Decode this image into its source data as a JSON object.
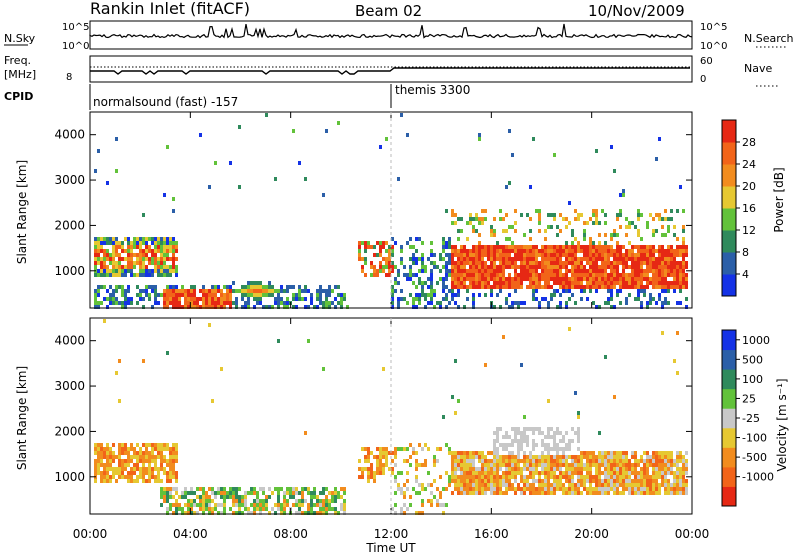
{
  "header": {
    "station": "Rankin Inlet (fitACF)",
    "beam": "Beam 02",
    "date": "10/Nov/2009"
  },
  "strip": {
    "left_top_label": "N.Sky",
    "left_top_ticks": [
      "10^5",
      "10^0"
    ],
    "right_top_label": "N.Search",
    "right_top_ticks": [
      "10^5",
      "10^0"
    ],
    "freq_label": "Freq.",
    "freq_unit": "[MHz]",
    "freq_ticks": [
      "8"
    ],
    "nave_label": "Nave",
    "nave_ticks": [
      "60",
      "0"
    ],
    "cpid_label": "CPID",
    "cpid_segments": [
      "normalsound (fast) -157",
      "themis 3300"
    ]
  },
  "colors": {
    "power": [
      "#1432e6",
      "#2b5fa8",
      "#2f8a5c",
      "#62c23a",
      "#e6c832",
      "#f28c1e",
      "#f26419",
      "#e62814"
    ],
    "velocity": [
      "#1432e6",
      "#2b5fa8",
      "#2f8a5c",
      "#62c23a",
      "#c8c8c8",
      "#e6c832",
      "#f28c1e",
      "#f26419",
      "#e62814"
    ]
  },
  "chart_data": [
    {
      "type": "heatmap",
      "title": "",
      "xlabel": "Time UT",
      "ylabel": "Slant Range [km]",
      "xticks": [
        "00:00",
        "04:00",
        "08:00",
        "12:00",
        "16:00",
        "20:00",
        "00:00"
      ],
      "yticks": [
        "1000",
        "2000",
        "3000",
        "4000"
      ],
      "xlim_hours": [
        0,
        24
      ],
      "ylim_km": [
        180,
        4500
      ],
      "colorbar_label": "Power [dB]",
      "colorbar_ticks": [
        "4",
        "8",
        "12",
        "16",
        "20",
        "24",
        "28"
      ],
      "colorbar_range_db": [
        0,
        32
      ],
      "regions": [
        {
          "t": [
            0.0,
            3.4
          ],
          "r": [
            900,
            1800
          ],
          "value": "mixed"
        },
        {
          "t": [
            2.7,
            5.6
          ],
          "r": [
            180,
            650
          ],
          "value": "high"
        },
        {
          "t": [
            5.6,
            7.6
          ],
          "r": [
            350,
            850
          ],
          "value": "medium"
        },
        {
          "t": [
            10.5,
            12.0
          ],
          "r": [
            900,
            1700
          ],
          "value": "medium"
        },
        {
          "t": [
            14.3,
            23.8
          ],
          "r": [
            600,
            1600
          ],
          "value": "high"
        }
      ]
    },
    {
      "type": "heatmap",
      "title": "",
      "xlabel": "Time UT",
      "ylabel": "Slant Range [km]",
      "xticks": [
        "00:00",
        "04:00",
        "08:00",
        "12:00",
        "16:00",
        "20:00",
        "00:00"
      ],
      "yticks": [
        "1000",
        "2000",
        "3000",
        "4000"
      ],
      "xlim_hours": [
        0,
        24
      ],
      "ylim_km": [
        180,
        4500
      ],
      "colorbar_label": "Velocity [m s⁻¹]",
      "colorbar_ticks": [
        "1000",
        "500",
        "100",
        "25",
        "-25",
        "-100",
        "-500",
        "-1000"
      ],
      "regions": [
        {
          "t": [
            0.0,
            3.4
          ],
          "r": [
            900,
            1800
          ],
          "value": "-100 to -500"
        },
        {
          "t": [
            2.7,
            10.0
          ],
          "r": [
            180,
            800
          ],
          "value": "+100 to -100"
        },
        {
          "t": [
            10.5,
            12.0
          ],
          "r": [
            900,
            1700
          ],
          "value": "-100 to -500"
        },
        {
          "t": [
            14.3,
            23.8
          ],
          "r": [
            600,
            1600
          ],
          "value": "-100 to -500"
        },
        {
          "t": [
            16.0,
            19.5
          ],
          "r": [
            1500,
            2100
          ],
          "value": "-25 to 25"
        }
      ]
    }
  ]
}
